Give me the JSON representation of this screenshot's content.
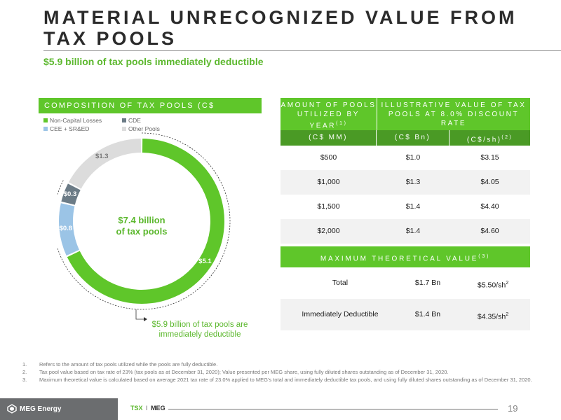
{
  "header": {
    "title": "MATERIAL UNRECOGNIZED VALUE FROM TAX POOLS",
    "subtitle": "$5.9 billion of tax pools immediately deductible"
  },
  "composition": {
    "header": "COMPOSITION OF TAX POOLS (C$ BILLION)",
    "legend": [
      {
        "label": "Non-Capital Losses",
        "color": "#5fc62a"
      },
      {
        "label": "CDE",
        "color": "#6b7b86"
      },
      {
        "label": "CEE + SR&ED",
        "color": "#9bc4e6"
      },
      {
        "label": "Other Pools",
        "color": "#dcdcdc"
      }
    ],
    "center_line1": "$7.4 billion",
    "center_line2": "of tax pools",
    "callout_line1": "$5.9 billion of tax pools are",
    "callout_line2": "immediately deductible"
  },
  "chart_data": {
    "type": "pie",
    "title": "COMPOSITION OF TAX POOLS (C$ BILLION)",
    "categories": [
      "Non-Capital Losses",
      "CEE + SR&ED",
      "CDE",
      "Other Pools"
    ],
    "values": [
      5.1,
      0.8,
      0.3,
      1.3
    ],
    "labels": [
      "$5.1",
      "$0.8",
      "$0.3",
      "$1.3"
    ],
    "colors": [
      "#5fc62a",
      "#9bc4e6",
      "#6b7b86",
      "#dcdcdc"
    ],
    "legend_position": "top-left"
  },
  "table1": {
    "col1_header": "AMOUNT OF POOLS UTILIZED BY YEAR",
    "col1_sup": "(1)",
    "col2_header": "ILLUSTRATIVE VALUE OF TAX POOLS AT 8.0% DISCOUNT RATE",
    "sub_headers": [
      "(C$ MM)",
      "(C$ Bn)",
      "(C$/sh)"
    ],
    "sub_sup": "(2)",
    "rows": [
      [
        "$500",
        "$1.0",
        "$3.15"
      ],
      [
        "$1,000",
        "$1.3",
        "$4.05"
      ],
      [
        "$1,500",
        "$1.4",
        "$4.40"
      ],
      [
        "$2,000",
        "$1.4",
        "$4.60"
      ]
    ]
  },
  "table2": {
    "header": "MAXIMUM THEORETICAL VALUE",
    "header_sup": "(3)",
    "rows": [
      {
        "label": "Total",
        "bn": "$1.7 Bn",
        "sh": "$5.50/sh",
        "sup": "2"
      },
      {
        "label": "Immediately Deductible",
        "bn": "$1.4 Bn",
        "sh": "$4.35/sh",
        "sup": "2"
      }
    ]
  },
  "footnotes": [
    {
      "num": "1.",
      "text": "Refers to the amount of tax pools utilized while the pools are fully deductible."
    },
    {
      "num": "2.",
      "text": "Tax pool value based on tax rate of 23% (tax pools as at December 31, 2020); Value presented per MEG share, using fully diluted shares outstanding as of December 31, 2020."
    },
    {
      "num": "3.",
      "text": "Maximum theoretical value is calculated based on average 2021 tax rate of 23.0% applied to MEG's total and immediately deductible tax pools, and using fully diluted shares outstanding as of December 31, 2020."
    }
  ],
  "footer": {
    "logo_text": "MEG Energy",
    "ticker_prefix": "TSX",
    "ticker_sep": "I",
    "ticker": "MEG",
    "page": "19"
  }
}
